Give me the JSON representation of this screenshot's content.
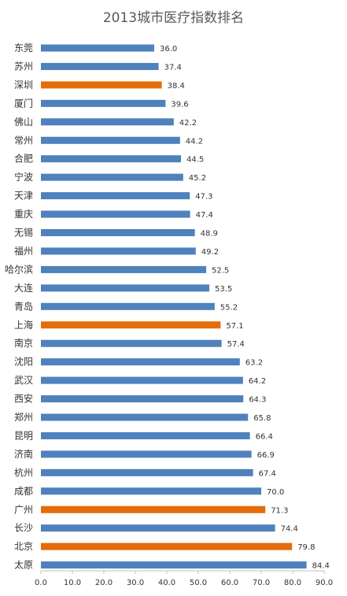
{
  "chart_data": {
    "type": "bar",
    "orientation": "horizontal",
    "title": "2013城市医疗指数排名",
    "xlabel": "",
    "ylabel": "",
    "xlim": [
      0,
      90
    ],
    "xticks": [
      "0.0",
      "10.0",
      "20.0",
      "30.0",
      "40.0",
      "50.0",
      "60.0",
      "70.0",
      "80.0",
      "90.0"
    ],
    "grid": false,
    "legend": "none",
    "categories": [
      "东莞",
      "苏州",
      "深圳",
      "厦门",
      "佛山",
      "常州",
      "合肥",
      "宁波",
      "天津",
      "重庆",
      "无锡",
      "福州",
      "哈尔滨",
      "大连",
      "青岛",
      "上海",
      "南京",
      "沈阳",
      "武汉",
      "西安",
      "郑州",
      "昆明",
      "济南",
      "杭州",
      "成都",
      "广州",
      "长沙",
      "北京",
      "太原"
    ],
    "values": [
      36.0,
      37.4,
      38.4,
      39.6,
      42.2,
      44.2,
      44.5,
      45.2,
      47.3,
      47.4,
      48.9,
      49.2,
      52.5,
      53.5,
      55.2,
      57.1,
      57.4,
      63.2,
      64.2,
      64.3,
      65.8,
      66.4,
      66.9,
      67.4,
      70.0,
      71.3,
      74.4,
      79.8,
      84.4
    ],
    "value_labels": [
      "36.0",
      "37.4",
      "38.4",
      "39.6",
      "42.2",
      "44.2",
      "44.5",
      "45.2",
      "47.3",
      "47.4",
      "48.9",
      "49.2",
      "52.5",
      "53.5",
      "55.2",
      "57.1",
      "57.4",
      "63.2",
      "64.2",
      "64.3",
      "65.8",
      "66.4",
      "66.9",
      "67.4",
      "70.0",
      "71.3",
      "74.4",
      "79.8",
      "84.4"
    ],
    "highlighted": [
      "深圳",
      "上海",
      "广州",
      "北京"
    ],
    "colors": {
      "default": "#4f81bd",
      "highlight": "#e46c0a",
      "axis": "#bfbfbf",
      "text": "#333333",
      "title": "#595959"
    }
  }
}
